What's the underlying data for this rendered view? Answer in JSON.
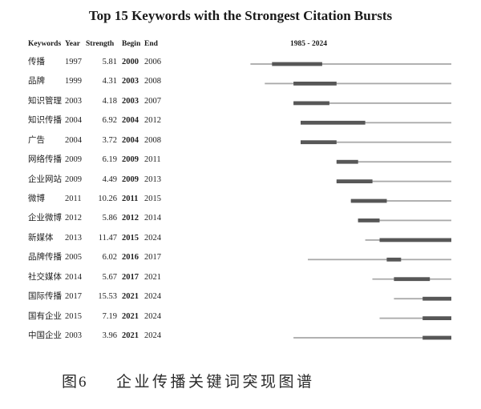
{
  "figure": {
    "caption_label": "图6",
    "caption_text": "企业传播关键词突现图谱"
  },
  "colors": {
    "burst": "#575757",
    "line": "#a9a9a9",
    "text": "#222222"
  },
  "chart_data": {
    "type": "table",
    "title": "Top 15 Keywords with the Strongest Citation Bursts",
    "columns": [
      "Keywords",
      "Year",
      "Strength",
      "Begin",
      "End",
      "1985 - 2024"
    ],
    "range": [
      1985,
      2024
    ],
    "rows": [
      {
        "keyword": "传播",
        "year": 1997,
        "strength": 5.81,
        "begin": 2000,
        "end": 2006
      },
      {
        "keyword": "品牌",
        "year": 1999,
        "strength": 4.31,
        "begin": 2003,
        "end": 2008
      },
      {
        "keyword": "知识管理",
        "year": 2003,
        "strength": 4.18,
        "begin": 2003,
        "end": 2007
      },
      {
        "keyword": "知识传播",
        "year": 2004,
        "strength": 6.92,
        "begin": 2004,
        "end": 2012
      },
      {
        "keyword": "广告",
        "year": 2004,
        "strength": 3.72,
        "begin": 2004,
        "end": 2008
      },
      {
        "keyword": "网络传播",
        "year": 2009,
        "strength": 6.19,
        "begin": 2009,
        "end": 2011
      },
      {
        "keyword": "企业网站",
        "year": 2009,
        "strength": 4.49,
        "begin": 2009,
        "end": 2013
      },
      {
        "keyword": "微博",
        "year": 2011,
        "strength": 10.26,
        "begin": 2011,
        "end": 2015
      },
      {
        "keyword": "企业微博",
        "year": 2012,
        "strength": 5.86,
        "begin": 2012,
        "end": 2014
      },
      {
        "keyword": "新媒体",
        "year": 2013,
        "strength": 11.47,
        "begin": 2015,
        "end": 2024
      },
      {
        "keyword": "品牌传播",
        "year": 2005,
        "strength": 6.02,
        "begin": 2016,
        "end": 2017
      },
      {
        "keyword": "社交媒体",
        "year": 2014,
        "strength": 5.67,
        "begin": 2017,
        "end": 2021
      },
      {
        "keyword": "国际传播",
        "year": 2017,
        "strength": 15.53,
        "begin": 2021,
        "end": 2024
      },
      {
        "keyword": "国有企业",
        "year": 2015,
        "strength": 7.19,
        "begin": 2021,
        "end": 2024
      },
      {
        "keyword": "中国企业",
        "year": 2003,
        "strength": 3.96,
        "begin": 2021,
        "end": 2024
      }
    ]
  }
}
